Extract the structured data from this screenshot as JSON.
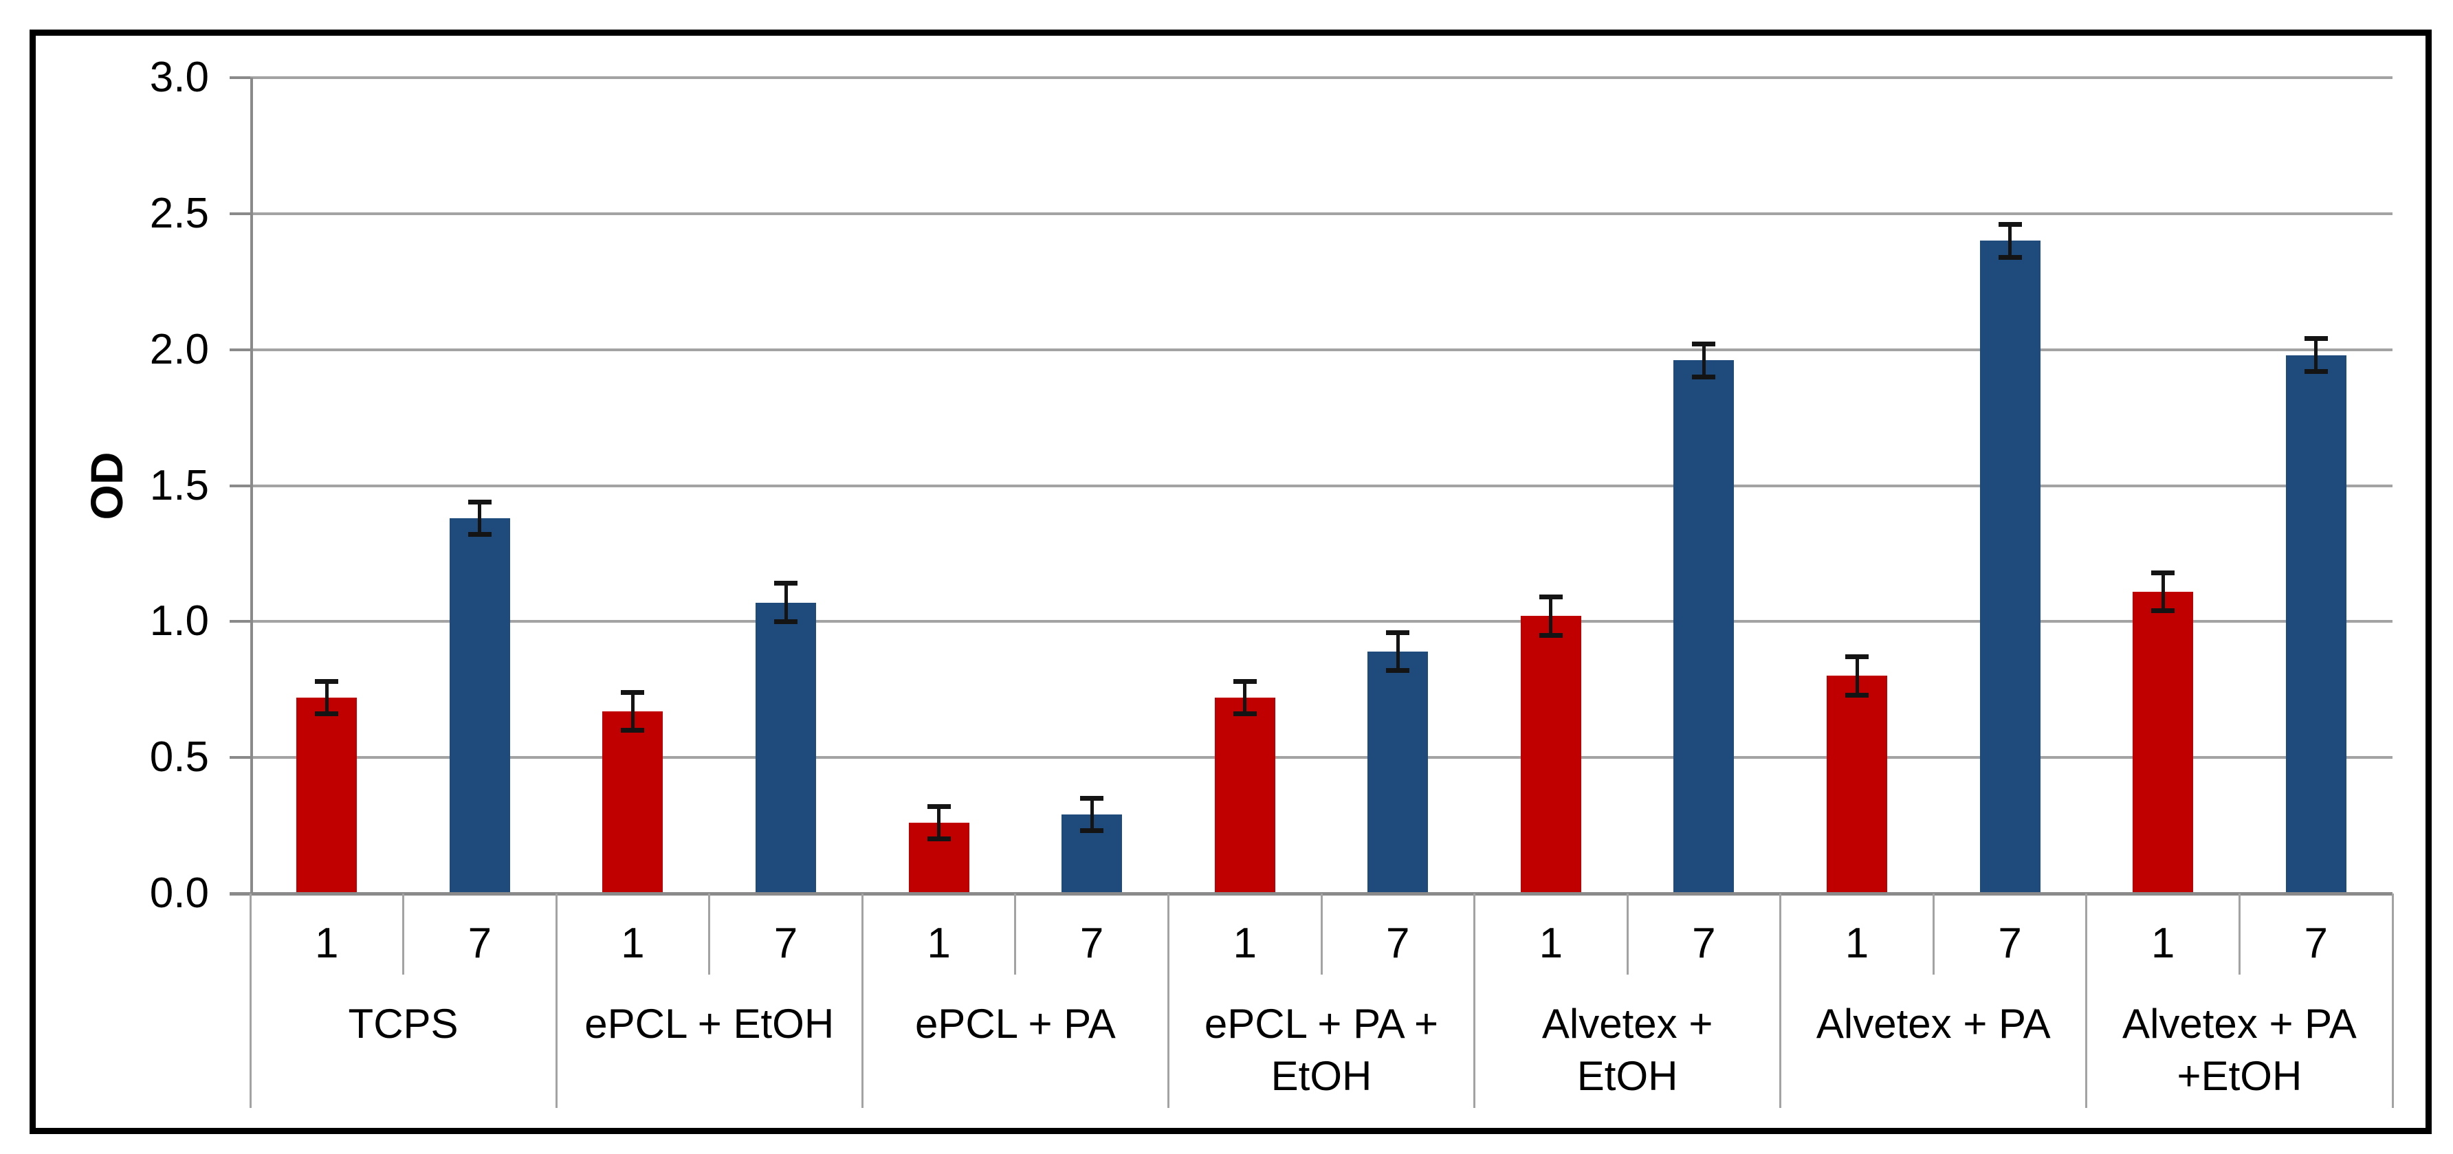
{
  "chart_data": {
    "type": "bar",
    "title": "",
    "ylabel": "OD",
    "xlabel": "",
    "ylim": [
      0.0,
      3.0
    ],
    "ytick_step": 0.5,
    "ytick_labels": [
      "0.0",
      "0.5",
      "1.0",
      "1.5",
      "2.0",
      "2.5",
      "3.0"
    ],
    "grid": true,
    "legend_position": "none",
    "day_tick_labels": [
      "1",
      "7"
    ],
    "groups": [
      "TCPS",
      "ePCL + EtOH",
      "ePCL + PA",
      "ePCL + PA +\nEtOH",
      "Alvetex +\nEtOH",
      "Alvetex + PA",
      "Alvetex + PA\n+EtOH"
    ],
    "series": [
      {
        "name": "1",
        "color": "#C00000",
        "values": [
          0.72,
          0.67,
          0.26,
          0.72,
          1.02,
          0.8,
          1.11
        ],
        "errors": [
          0.06,
          0.07,
          0.06,
          0.06,
          0.07,
          0.07,
          0.07
        ]
      },
      {
        "name": "7",
        "color": "#1F4A7C",
        "values": [
          1.38,
          1.07,
          0.29,
          0.89,
          1.96,
          2.4,
          1.98
        ],
        "errors": [
          0.06,
          0.07,
          0.06,
          0.07,
          0.06,
          0.06,
          0.06
        ]
      }
    ],
    "colors": {
      "gridline": "#A3A3A3",
      "axis": "#8A8A8A",
      "error_bar": "#141414",
      "background": "#FFFFFF",
      "outer_border": "#000000"
    }
  }
}
